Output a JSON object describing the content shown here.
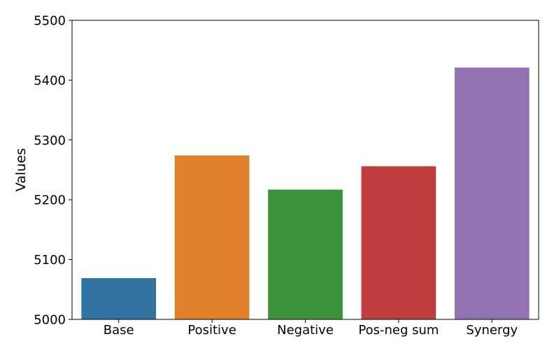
{
  "chart_data": {
    "type": "bar",
    "title": "",
    "xlabel": "",
    "ylabel": "Values",
    "categories": [
      "Base",
      "Positive",
      "Negative",
      "Pos-neg sum",
      "Synergy"
    ],
    "values": [
      5069,
      5274,
      5217,
      5256,
      5421
    ],
    "colors": [
      "#3274a1",
      "#e1812c",
      "#3a923a",
      "#c03d3e",
      "#9372b2"
    ],
    "ylim": [
      5000,
      5500
    ],
    "yticks": [
      5000,
      5100,
      5200,
      5300,
      5400,
      5500
    ],
    "grid": false,
    "legend": "none"
  }
}
